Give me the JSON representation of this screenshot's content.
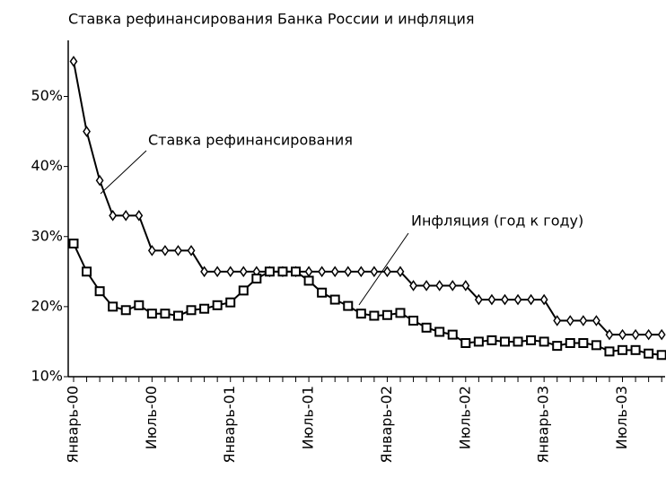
{
  "chart_data": {
    "type": "line",
    "title": "Ставка рефинансирования Банка России и инфляция",
    "categories": [
      "Январь-00",
      null,
      null,
      null,
      null,
      null,
      "Июль-00",
      null,
      null,
      null,
      null,
      null,
      "Январь-01",
      null,
      null,
      null,
      null,
      null,
      "Июль-01",
      null,
      null,
      null,
      null,
      null,
      "Январь-02",
      null,
      null,
      null,
      null,
      null,
      "Июль-02",
      null,
      null,
      null,
      null,
      null,
      "Январь-03",
      null,
      null,
      null,
      null,
      null,
      "Июль-03",
      null,
      null,
      null
    ],
    "series": [
      {
        "name": "Ставка рефинансирования",
        "color": "#000000",
        "marker": "diamond",
        "values": [
          55,
          45,
          38,
          33,
          33,
          33,
          28,
          28,
          28,
          28,
          25,
          25,
          25,
          25,
          25,
          25,
          25,
          25,
          25,
          25,
          25,
          25,
          25,
          25,
          25,
          25,
          23,
          23,
          23,
          23,
          23,
          21,
          21,
          21,
          21,
          21,
          21,
          18,
          18,
          18,
          18,
          16,
          16,
          16,
          16,
          16
        ]
      },
      {
        "name": "Инфляция (год к году)",
        "color": "#000000",
        "marker": "square",
        "values": [
          29,
          25,
          22.2,
          20,
          19.5,
          20.2,
          19,
          19,
          18.7,
          19.5,
          19.7,
          20.2,
          20.6,
          22.3,
          24,
          25,
          25,
          25,
          23.7,
          22,
          21,
          20.1,
          19,
          18.7,
          18.8,
          19.1,
          18,
          17,
          16.4,
          16,
          14.8,
          15,
          15.2,
          15,
          15,
          15.2,
          15,
          14.4,
          14.8,
          14.8,
          14.5,
          13.6,
          13.8,
          13.8,
          13.3,
          13.1
        ]
      }
    ],
    "ylim": [
      10,
      58
    ],
    "yticks": [
      {
        "value": 10,
        "label": "10%"
      },
      {
        "value": 20,
        "label": "20%"
      },
      {
        "value": 30,
        "label": "30%"
      },
      {
        "value": 40,
        "label": "40%"
      },
      {
        "value": 50,
        "label": "50%"
      }
    ],
    "grid": false
  }
}
